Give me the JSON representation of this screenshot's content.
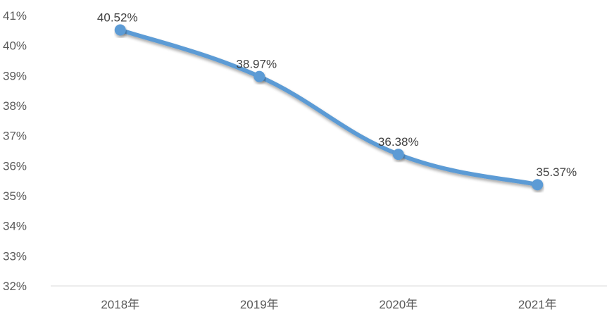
{
  "chart_data": {
    "type": "line",
    "title": "",
    "xlabel": "",
    "ylabel": "",
    "categories": [
      "2018年",
      "2019年",
      "2020年",
      "2021年"
    ],
    "series": [
      {
        "values": [
          40.52,
          38.97,
          36.38,
          35.37
        ],
        "data_labels": [
          "40.52%",
          "38.97%",
          "36.38%",
          "35.37%"
        ],
        "color": "#5b9bd5",
        "smooth": true
      }
    ],
    "y_ticks": [
      "32%",
      "33%",
      "34%",
      "35%",
      "36%",
      "37%",
      "38%",
      "39%",
      "40%",
      "41%"
    ],
    "ylim": [
      32,
      41
    ],
    "grid": false,
    "legend": "none",
    "axis_color": "#d9d9d9"
  }
}
